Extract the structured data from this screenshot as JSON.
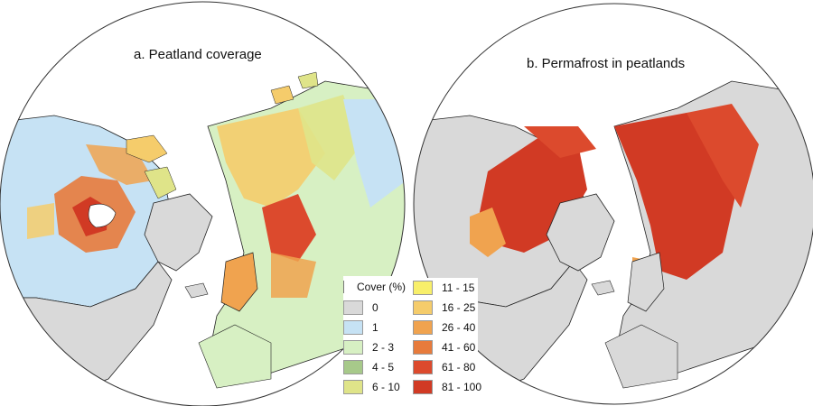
{
  "panels": [
    {
      "id": "a",
      "title": "a. Peatland coverage"
    },
    {
      "id": "b",
      "title": "b. Permafrost in peatlands"
    }
  ],
  "legend": {
    "title": "Cover (%)",
    "classes": [
      {
        "label": "0",
        "color": "#d9d9d9"
      },
      {
        "label": "1",
        "color": "#c6e2f4"
      },
      {
        "label": "2 - 3",
        "color": "#d7f0c3"
      },
      {
        "label": "4 - 5",
        "color": "#a7c98a"
      },
      {
        "label": "6 - 10",
        "color": "#dfe489"
      },
      {
        "label": "11 - 15",
        "color": "#f8ef6a"
      },
      {
        "label": "16 - 25",
        "color": "#f5cc6b"
      },
      {
        "label": "26 - 40",
        "color": "#f0a34f"
      },
      {
        "label": "41 - 60",
        "color": "#e77b3c"
      },
      {
        "label": "61 - 80",
        "color": "#dc4a2d"
      },
      {
        "label": "81 - 100",
        "color": "#d13a24"
      }
    ]
  },
  "colors": {
    "land_gray": "#d9d9d9",
    "ocean": "#ffffff",
    "boundary": "#222222",
    "permafrost": "#d23c25"
  }
}
